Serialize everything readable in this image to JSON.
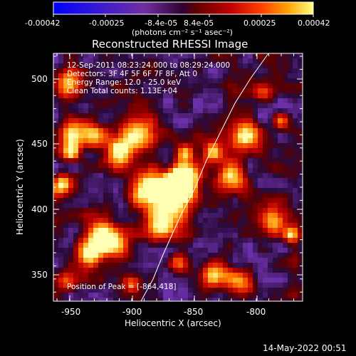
{
  "colorbar": {
    "tick_labels": [
      "-0.00042",
      "-0.00025",
      "-8.4e-05",
      "8.4e-05",
      "0.00025",
      "0.00042"
    ],
    "unit_label": "(photons cm⁻² s⁻¹ asec⁻²)",
    "range": [
      -0.00042,
      0.00042
    ]
  },
  "plot": {
    "title": "Reconstructed RHESSI Image",
    "xlabel": "Heliocentric X (arcsec)",
    "ylabel": "Heliocentric Y (arcsec)",
    "x_ticks": [
      "-950",
      "-900",
      "-850",
      "-800"
    ],
    "y_ticks": [
      "350",
      "400",
      "450",
      "500"
    ],
    "xlim": [
      -965,
      -785
    ],
    "ylim": [
      330,
      520
    ]
  },
  "info": {
    "line1": "12-Sep-2011 08:23:24.000 to 08:29:24.000",
    "line2": "Detectors: 3F 4F 5F 6F 7F 8F, Att 0",
    "line3": "Energy Range: 12.0 - 25.0 keV",
    "line4": "Clean     Total counts: 1.13E+04",
    "peak": "Position of Peak = [-864,418]"
  },
  "timestamp": "14-May-2022 00:51"
}
